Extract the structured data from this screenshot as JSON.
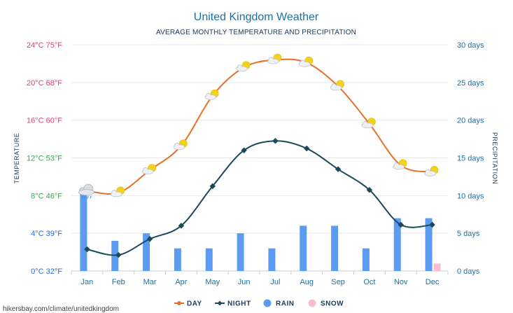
{
  "chart_data": {
    "type": "line",
    "title": "United Kingdom Weather",
    "subtitle": "AVERAGE MONTHLY TEMPERATURE AND PRECIPITATION",
    "left_axis_label": "TEMPERATURE",
    "right_axis_label": "PRECIPITATION",
    "categories": [
      "Jan",
      "Feb",
      "Mar",
      "Apr",
      "May",
      "Jun",
      "Jul",
      "Aug",
      "Sep",
      "Oct",
      "Nov",
      "Dec"
    ],
    "left_ticks": [
      {
        "value": 0,
        "label": "0°C 32°F",
        "color": "#2b6cd9"
      },
      {
        "value": 4,
        "label": "4°C 39°F",
        "color": "#2b6cd9"
      },
      {
        "value": 8,
        "label": "8°C 46°F",
        "color": "#3aa84f"
      },
      {
        "value": 12,
        "label": "12°C 53°F",
        "color": "#3aa84f"
      },
      {
        "value": 16,
        "label": "16°C 60°F",
        "color": "#e0407a"
      },
      {
        "value": 20,
        "label": "20°C 68°F",
        "color": "#e0407a"
      },
      {
        "value": 24,
        "label": "24°C 75°F",
        "color": "#e0407a"
      }
    ],
    "right_ticks": [
      {
        "value": 0,
        "label": "0 days"
      },
      {
        "value": 5,
        "label": "5 days"
      },
      {
        "value": 10,
        "label": "10 days"
      },
      {
        "value": 15,
        "label": "15 days"
      },
      {
        "value": 20,
        "label": "20 days"
      },
      {
        "value": 25,
        "label": "25 days"
      },
      {
        "value": 30,
        "label": "30 days"
      }
    ],
    "temp_range": [
      0,
      24
    ],
    "days_range": [
      0,
      30
    ],
    "series": [
      {
        "name": "DAY",
        "color": "#e8702a",
        "values": [
          8.5,
          8.3,
          10.7,
          13.3,
          18.6,
          21.6,
          22.4,
          22.1,
          19.6,
          15.6,
          11.2,
          10.5
        ]
      },
      {
        "name": "NIGHT",
        "color": "#1a4a5a",
        "values": [
          2.3,
          1.7,
          3.4,
          4.8,
          9.0,
          12.8,
          13.8,
          13.0,
          10.8,
          8.6,
          4.9,
          4.9
        ]
      },
      {
        "name": "RAIN",
        "color": "#5b9cf0",
        "values": [
          10.5,
          4.0,
          5.0,
          3.0,
          3.0,
          5.0,
          3.0,
          6.0,
          6.0,
          3.0,
          7.0,
          7.0
        ]
      },
      {
        "name": "SNOW",
        "color": "#f8bfd0",
        "values": [
          0,
          0,
          0,
          0,
          0,
          0,
          0,
          0,
          0,
          0,
          0,
          1.0
        ]
      }
    ],
    "weather_icons": [
      "cloudy-rain",
      "partly-sunny",
      "partly-sunny",
      "partly-sunny",
      "partly-sunny",
      "partly-sunny",
      "partly-sunny",
      "partly-sunny",
      "partly-sunny",
      "partly-sunny",
      "partly-sunny",
      "partly-sunny"
    ],
    "grid": true,
    "legend_position": "bottom"
  },
  "footer_text": "hikersbay.com/climate/unitedkingdom"
}
